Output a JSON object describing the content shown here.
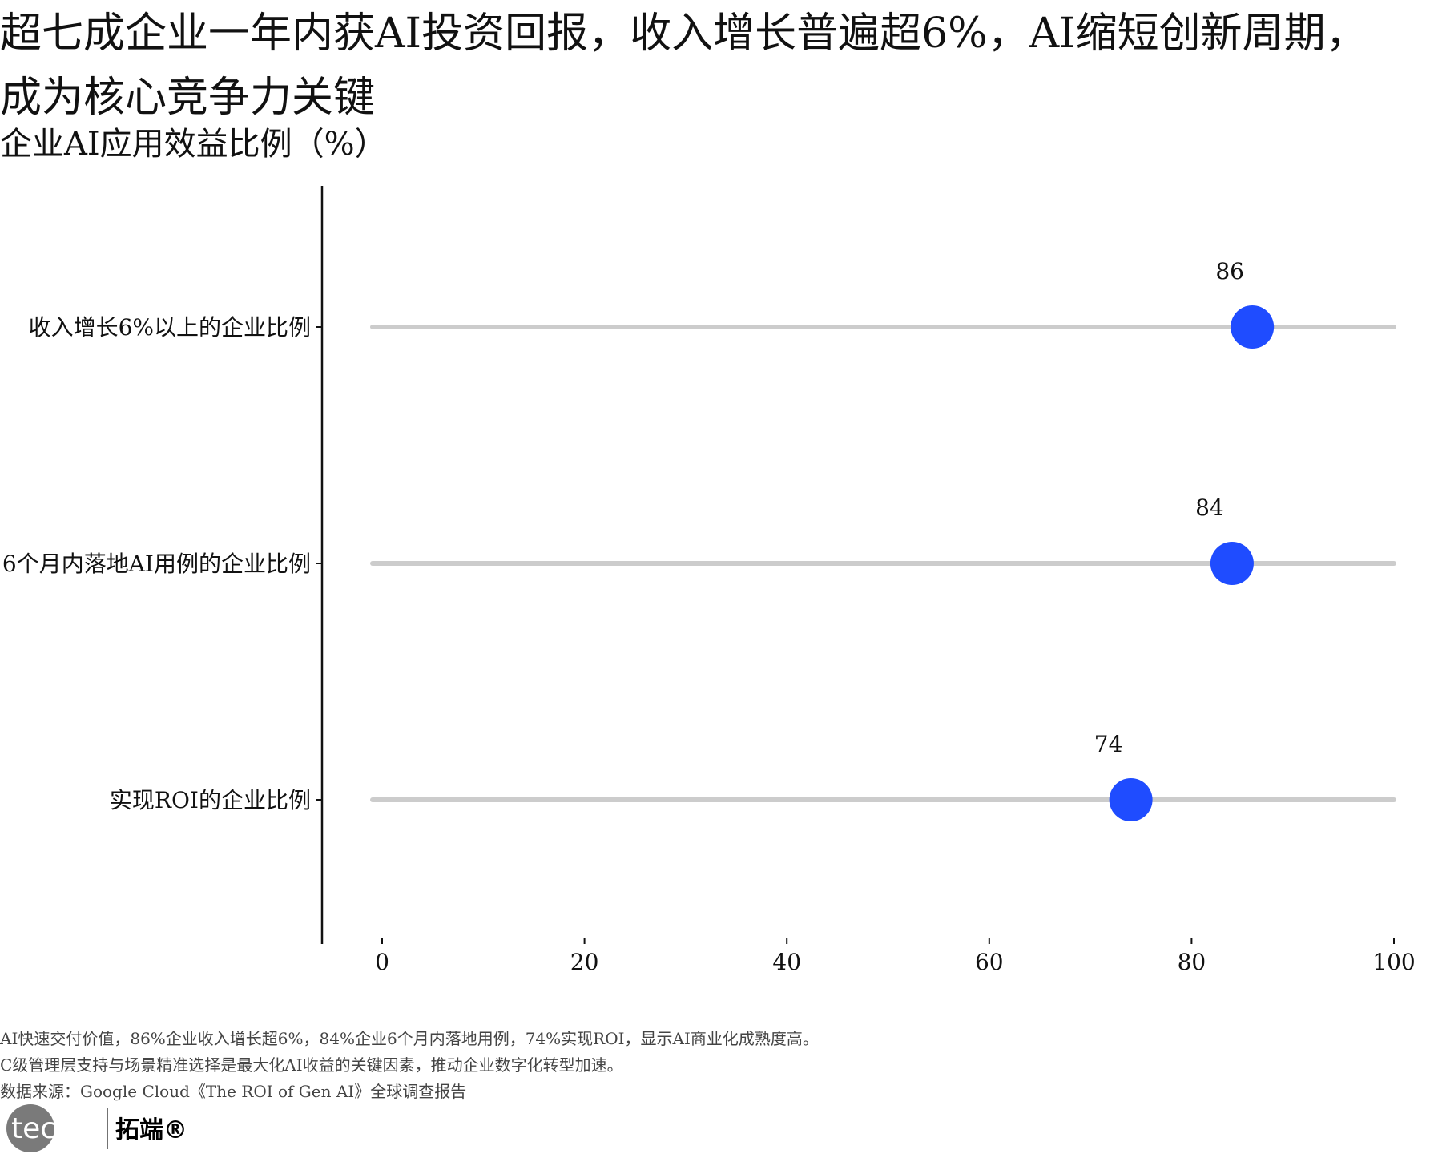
{
  "title_lines": [
    "超七成企业一年内获AI投资回报，收入增长普遍超6%，AI缩短创新周期，",
    "成为核心竞争力关键"
  ],
  "subtitle": "企业AI应用效益比例（%）",
  "chart_data": {
    "type": "lollipop",
    "orientation": "horizontal",
    "categories": [
      "收入增长6%以上的企业比例",
      "6个月内落地AI用例的企业比例",
      "实现ROI的企业比例"
    ],
    "values": [
      86,
      84,
      74
    ],
    "xlim": [
      0,
      100
    ],
    "xticks": [
      0,
      20,
      40,
      60,
      80,
      100
    ],
    "point_color": "#1f4cff",
    "track_color": "#cccccc",
    "grid": false
  },
  "notes": [
    "AI快速交付价值，86%企业收入增长超6%，84%企业6个月内落地用例，74%实现ROI，显示AI商业化成熟度高。",
    "C级管理层支持与场景精准选择是最大化AI收益的关键因素，推动企业数字化转型加速。",
    "数据来源：Google Cloud《The ROI of Gen AI》全球调查报告"
  ],
  "logo": {
    "en": "tecdat",
    "cn": "拓端®"
  }
}
